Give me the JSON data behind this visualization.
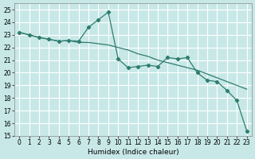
{
  "title": "",
  "xlabel": "Humidex (Indice chaleur)",
  "xlim": [
    -0.5,
    23.5
  ],
  "ylim": [
    15,
    25.5
  ],
  "yticks": [
    15,
    16,
    17,
    18,
    19,
    20,
    21,
    22,
    23,
    24,
    25
  ],
  "xticks": [
    0,
    1,
    2,
    3,
    4,
    5,
    6,
    7,
    8,
    9,
    10,
    11,
    12,
    13,
    14,
    15,
    16,
    17,
    18,
    19,
    20,
    21,
    22,
    23
  ],
  "bg_color": "#c8e8e8",
  "grid_color": "#ffffff",
  "line_color": "#2e7d6e",
  "line1_x": [
    0,
    1,
    2,
    3,
    4,
    5,
    6,
    7,
    8,
    9,
    10,
    11,
    12,
    13,
    14,
    15,
    16,
    17,
    18,
    19,
    20,
    21,
    22,
    23
  ],
  "line1_y": [
    23.2,
    23.0,
    22.8,
    22.65,
    22.5,
    22.55,
    22.5,
    23.6,
    24.2,
    24.8,
    21.1,
    20.4,
    20.5,
    20.6,
    20.5,
    21.2,
    21.1,
    21.2,
    20.0,
    19.4,
    19.3,
    18.6,
    17.8,
    15.4
  ],
  "line2_x": [
    0,
    1,
    2,
    3,
    4,
    5,
    6,
    7,
    8,
    9,
    10,
    11,
    12,
    13,
    14,
    15,
    16,
    17,
    18,
    19,
    20,
    21,
    22,
    23
  ],
  "line2_y": [
    23.2,
    23.0,
    22.8,
    22.65,
    22.5,
    22.55,
    22.4,
    22.4,
    22.3,
    22.2,
    22.0,
    21.8,
    21.5,
    21.3,
    21.0,
    20.8,
    20.6,
    20.4,
    20.2,
    19.9,
    19.6,
    19.3,
    19.0,
    18.7
  ],
  "tick_fontsize": 5.5,
  "xlabel_fontsize": 6.5
}
